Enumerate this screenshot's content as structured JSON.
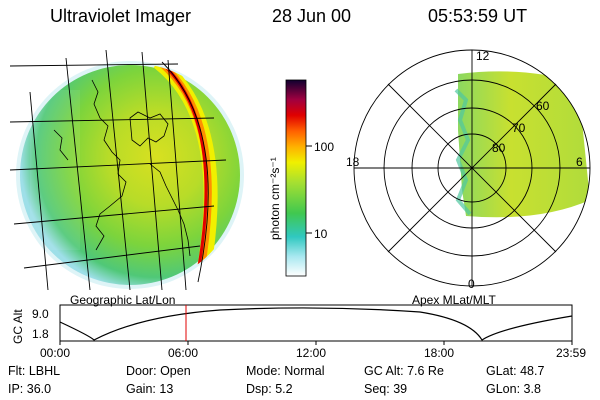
{
  "header": {
    "instrument": "Ultraviolet Imager",
    "date": "28 Jun 00",
    "time": "05:53:59 UT"
  },
  "left_panel": {
    "projection_label": "Geographic Lat/Lon"
  },
  "colorbar": {
    "label": "photon cm⁻²s⁻¹",
    "ticks": [
      "100",
      "10"
    ],
    "scale": "log"
  },
  "polar_plot": {
    "label": "Apex MLat/MLT",
    "mlt_labels": [
      "12",
      "18",
      "6",
      "0"
    ],
    "mlat_labels": [
      "60",
      "70",
      "80"
    ]
  },
  "timeline": {
    "ylabel": "GC Alt",
    "yticks": [
      "9.0",
      "1.8"
    ],
    "xticks": [
      "00:00",
      "06:00",
      "12:00",
      "18:00",
      "23:59"
    ],
    "marker_time": "05:53:59",
    "marker_color": "#e00000"
  },
  "footer": {
    "row1": [
      {
        "key": "Flt:",
        "value": "LBHL"
      },
      {
        "key": "Door:",
        "value": "Open"
      },
      {
        "key": "Mode:",
        "value": "Normal"
      },
      {
        "key": "GC Alt:",
        "value": "7.6 Re"
      },
      {
        "key": "GLat:",
        "value": "48.7"
      }
    ],
    "row2": [
      {
        "key": "IP:",
        "value": "36.0"
      },
      {
        "key": "Gain:",
        "value": "13"
      },
      {
        "key": "Dsp:",
        "value": "5.2"
      },
      {
        "key": "Seq:",
        "value": "39"
      },
      {
        "key": "GLon:",
        "value": "3.8"
      }
    ]
  }
}
